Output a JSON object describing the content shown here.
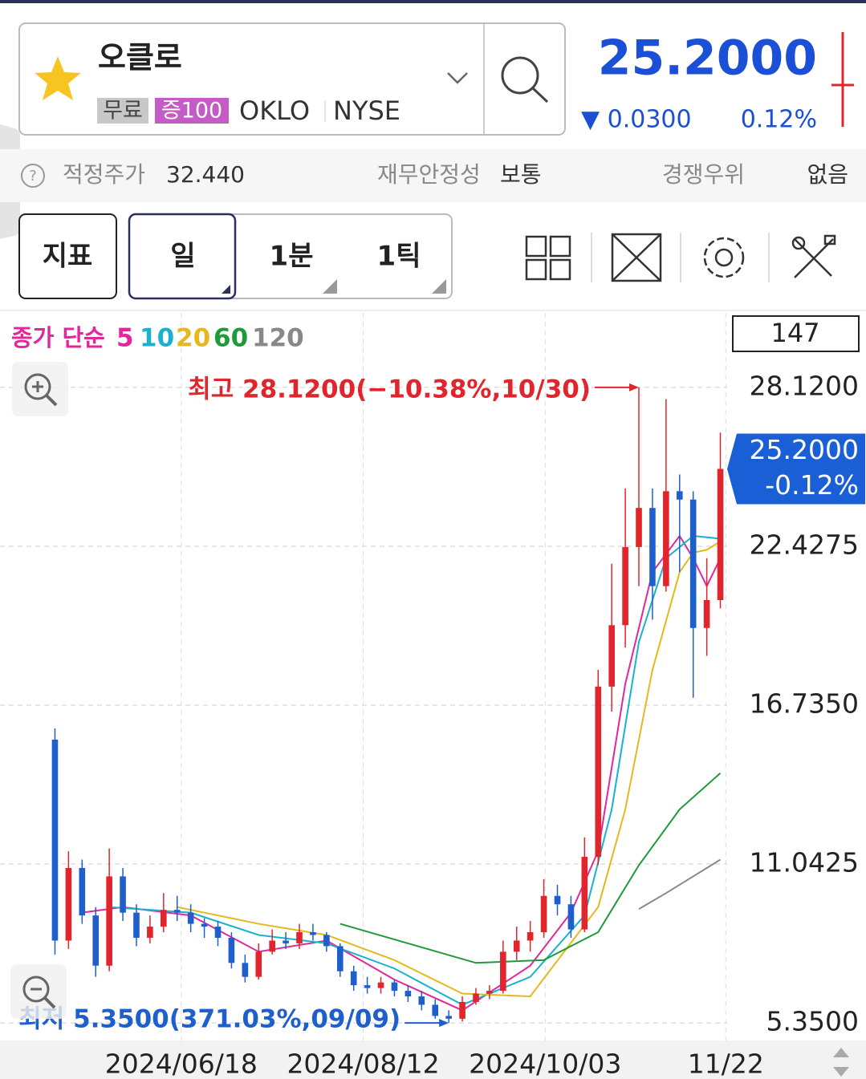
{
  "header": {
    "name": "오클로",
    "tags": [
      "무료",
      "증100"
    ],
    "ticker": "OKLO",
    "exchange": "NYSE",
    "price": "25.2000",
    "change": "▼ 0.0300",
    "change_rate": "0.12%"
  },
  "fundamentals": {
    "fair_price_label": "적정주가",
    "fair_price": "32.440",
    "stability_label": "재무안정성",
    "stability": "보통",
    "advantage_label": "경쟁우위",
    "advantage": "없음"
  },
  "toolbar": {
    "indicator": "지표",
    "periods": [
      "일",
      "1분",
      "1틱"
    ]
  },
  "chart_data": {
    "type": "candlestick",
    "legend_label": "종가 단순",
    "count": 147,
    "up_color": "#e0262c",
    "down_color": "#1e5fcc",
    "grid": true,
    "current_price_label": "25.2000",
    "current_change_label": "-0.12%",
    "high_annotation": "최고 28.1200(−10.38%,10/30)",
    "low_annotation": "최저 5.3500(371.03%,09/09)",
    "ylim": [
      4.72,
      30.79
    ],
    "yticks": [
      {
        "value": 5.35,
        "label": "5.3500"
      },
      {
        "value": 11.0425,
        "label": "11.0425"
      },
      {
        "value": 16.735,
        "label": "16.7350"
      },
      {
        "value": 22.4275,
        "label": "22.4275"
      },
      {
        "value": 28.12,
        "label": "28.1200"
      }
    ],
    "xlim": [
      -0.5,
      49.5
    ],
    "xticks": [
      {
        "value": 9.3,
        "label": "2024/06/18"
      },
      {
        "value": 22.7,
        "label": "2024/08/12"
      },
      {
        "value": 36.1,
        "label": "2024/10/03"
      },
      {
        "value": 49.4,
        "label": "11/22"
      }
    ],
    "open": [
      15.5,
      8.3,
      10.9,
      9.2,
      7.4,
      10.6,
      9.3,
      8.4,
      8.8,
      9.4,
      9.3,
      8.9,
      8.8,
      8.4,
      7.5,
      7.0,
      7.9,
      8.3,
      8.2,
      8.6,
      8.5,
      8.1,
      7.2,
      6.7,
      6.6,
      6.8,
      6.5,
      6.3,
      6.0,
      5.6,
      5.5,
      6.1,
      6.4,
      6.5,
      7.9,
      8.3,
      8.6,
      9.9,
      9.6,
      8.7,
      11.3,
      17.4,
      19.6,
      22.4,
      23.8,
      21.0,
      24.4,
      24.1,
      19.5,
      20.5
    ],
    "high": [
      15.9,
      11.5,
      11.2,
      9.5,
      11.6,
      10.9,
      9.6,
      9.2,
      10.0,
      9.9,
      9.6,
      9.1,
      9.0,
      8.6,
      7.8,
      8.2,
      8.7,
      8.6,
      8.9,
      8.9,
      8.6,
      8.2,
      7.4,
      7.0,
      7.0,
      6.9,
      6.7,
      6.5,
      6.2,
      5.8,
      6.3,
      6.6,
      6.7,
      8.3,
      8.8,
      9.0,
      10.5,
      10.3,
      9.9,
      12.0,
      18.0,
      21.8,
      24.5,
      28.12,
      24.5,
      27.7,
      25.0,
      24.4,
      22.0,
      26.5
    ],
    "low": [
      7.8,
      8.0,
      8.9,
      7.0,
      7.2,
      9.0,
      8.1,
      8.2,
      8.6,
      9.0,
      8.6,
      8.4,
      8.1,
      7.3,
      6.8,
      6.9,
      7.8,
      8.0,
      8.0,
      8.3,
      7.9,
      7.0,
      6.5,
      6.4,
      6.4,
      6.3,
      6.1,
      5.8,
      5.5,
      5.35,
      5.4,
      6.0,
      6.2,
      6.4,
      7.6,
      7.9,
      8.4,
      9.2,
      8.4,
      8.6,
      11.0,
      16.5,
      18.8,
      21.0,
      19.8,
      20.8,
      21.5,
      17.0,
      18.5,
      20.2
    ],
    "close": [
      8.3,
      10.9,
      9.2,
      7.4,
      10.6,
      9.3,
      8.4,
      8.8,
      9.4,
      9.3,
      8.9,
      8.8,
      8.4,
      7.5,
      7.0,
      7.9,
      8.3,
      8.2,
      8.6,
      8.5,
      8.1,
      7.2,
      6.7,
      6.6,
      6.8,
      6.5,
      6.3,
      6.0,
      5.6,
      5.5,
      6.1,
      6.4,
      6.5,
      7.9,
      8.3,
      8.6,
      9.9,
      9.6,
      8.7,
      11.3,
      17.4,
      19.6,
      22.4,
      23.8,
      21.0,
      24.4,
      24.1,
      19.5,
      20.5,
      25.2
    ],
    "series": [
      {
        "name": "5",
        "color": "#e0289b",
        "x": [
          2,
          5,
          10,
          15,
          20,
          25,
          30,
          35,
          38,
          40,
          42,
          44,
          46,
          47,
          48,
          49
        ],
        "values": [
          9.3,
          9.5,
          9.2,
          7.9,
          8.3,
          6.9,
          5.8,
          7.4,
          9.3,
          11.5,
          17.5,
          21.5,
          22.8,
          22.0,
          21.0,
          22.0
        ]
      },
      {
        "name": "10",
        "color": "#1ab0d0",
        "x": [
          4,
          10,
          15,
          20,
          25,
          30,
          35,
          39,
          41,
          43,
          45,
          47,
          49
        ],
        "values": [
          9.5,
          9.3,
          8.5,
          8.2,
          7.3,
          6.0,
          7.0,
          9.2,
          13.0,
          19.0,
          22.0,
          22.8,
          22.7
        ]
      },
      {
        "name": "20",
        "color": "#e5b81e",
        "x": [
          9,
          15,
          20,
          25,
          30,
          35,
          40,
          42,
          44,
          46,
          47,
          48,
          49
        ],
        "values": [
          9.5,
          8.9,
          8.5,
          7.6,
          6.4,
          6.3,
          9.5,
          13.0,
          18.0,
          21.5,
          22.2,
          22.3,
          22.6
        ]
      },
      {
        "name": "60",
        "color": "#1e9a3a",
        "x": [
          21,
          26,
          31,
          36,
          40,
          43,
          46,
          49
        ],
        "values": [
          8.9,
          8.2,
          7.5,
          7.6,
          8.6,
          11.0,
          13.0,
          14.3
        ]
      },
      {
        "name": "120",
        "color": "#888888",
        "x": [
          43,
          45,
          47,
          49
        ],
        "values": [
          9.43,
          10.0,
          10.6,
          11.2
        ]
      }
    ]
  }
}
